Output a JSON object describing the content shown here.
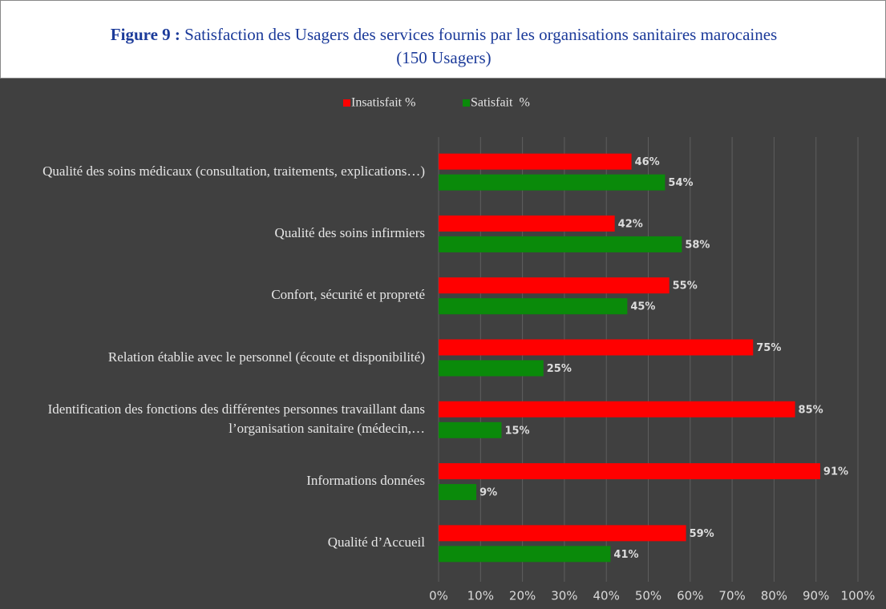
{
  "chart_data": {
    "type": "bar",
    "orientation": "horizontal",
    "figure_label": "Figure 9 :",
    "title": "Satisfaction des Usagers des services fournis par les organisations sanitaires marocaines (150 Usagers)",
    "categories": [
      "Qualité des soins médicaux (consultation, traitements, explications…)",
      "Qualité des soins infirmiers",
      "Confort, sécurité et propreté",
      "Relation établie avec le personnel (écoute et disponibilité)",
      "Identification des fonctions des différentes personnes travaillant dans l’organisation sanitaire (médecin,…",
      "Informations données",
      "Qualité d’Accueil"
    ],
    "series": [
      {
        "name": "Insatisfait %",
        "color": "#ff0000",
        "values": [
          46,
          42,
          55,
          75,
          85,
          91,
          59
        ],
        "value_labels": [
          "46%",
          "42%",
          "55%",
          "75%",
          "85%",
          "91%",
          "59%"
        ]
      },
      {
        "name": "Satisfait  %",
        "color": "#0a8a0a",
        "values": [
          54,
          58,
          45,
          25,
          15,
          9,
          41
        ],
        "value_labels": [
          "54%",
          "58%",
          "45%",
          "25%",
          "15%",
          "9%",
          "41%"
        ]
      }
    ],
    "xlim": [
      0,
      100
    ],
    "xticks": [
      {
        "value": 0,
        "label": "0%"
      },
      {
        "value": 10,
        "label": "10%"
      },
      {
        "value": 20,
        "label": "20%"
      },
      {
        "value": 30,
        "label": "30%"
      },
      {
        "value": 40,
        "label": "40%"
      },
      {
        "value": 50,
        "label": "50%"
      },
      {
        "value": 60,
        "label": "60%"
      },
      {
        "value": 70,
        "label": "70%"
      },
      {
        "value": 80,
        "label": "80%"
      },
      {
        "value": 90,
        "label": "90%"
      },
      {
        "value": 100,
        "label": "100%"
      }
    ],
    "grid": true,
    "legend": "top"
  }
}
